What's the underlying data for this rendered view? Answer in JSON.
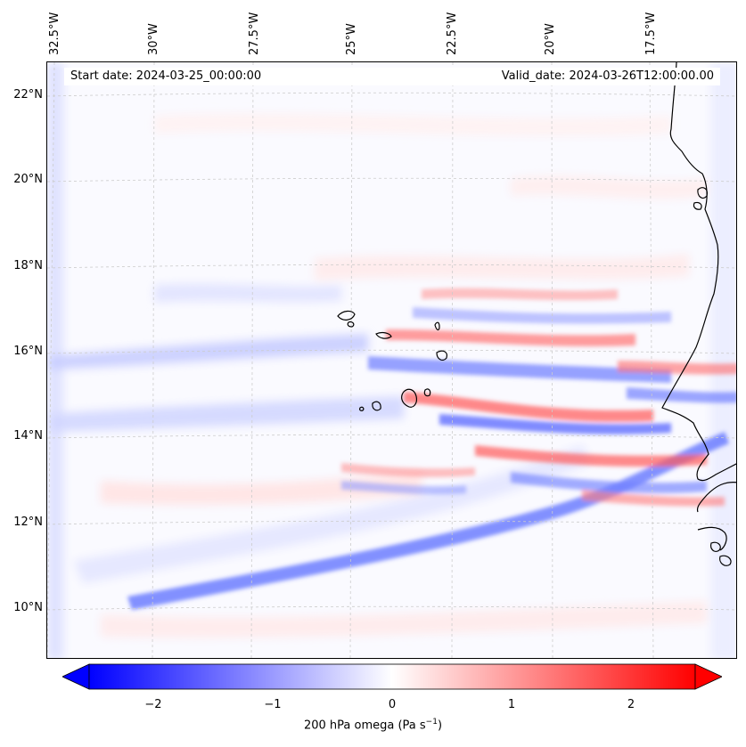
{
  "map": {
    "lon_labels": [
      "32.5°W",
      "30°W",
      "27.5°W",
      "25°W",
      "22.5°W",
      "20°W",
      "17.5°W"
    ],
    "lat_labels": [
      "22°N",
      "20°N",
      "18°N",
      "16°N",
      "14°N",
      "12°N",
      "10°N"
    ],
    "start_date": "Start date: 2024-03-25_00:00:00",
    "valid_date": "Valid_date: 2024-03-26T12:00:00.00"
  },
  "colorbar": {
    "ticks": [
      "−2",
      "−1",
      "0",
      "1",
      "2"
    ],
    "tick_values": [
      -2,
      -1,
      0,
      1,
      2
    ],
    "range": [
      -2.5,
      2.5
    ],
    "label_prefix": "200 hPa omega (Pa s",
    "label_exp": "−1",
    "label_suffix": ")",
    "color_min": "#0000ff",
    "color_mid": "#ffffff",
    "color_max": "#ff0000"
  },
  "colors": {
    "coast": "#000000",
    "grid": "#cccccc"
  }
}
